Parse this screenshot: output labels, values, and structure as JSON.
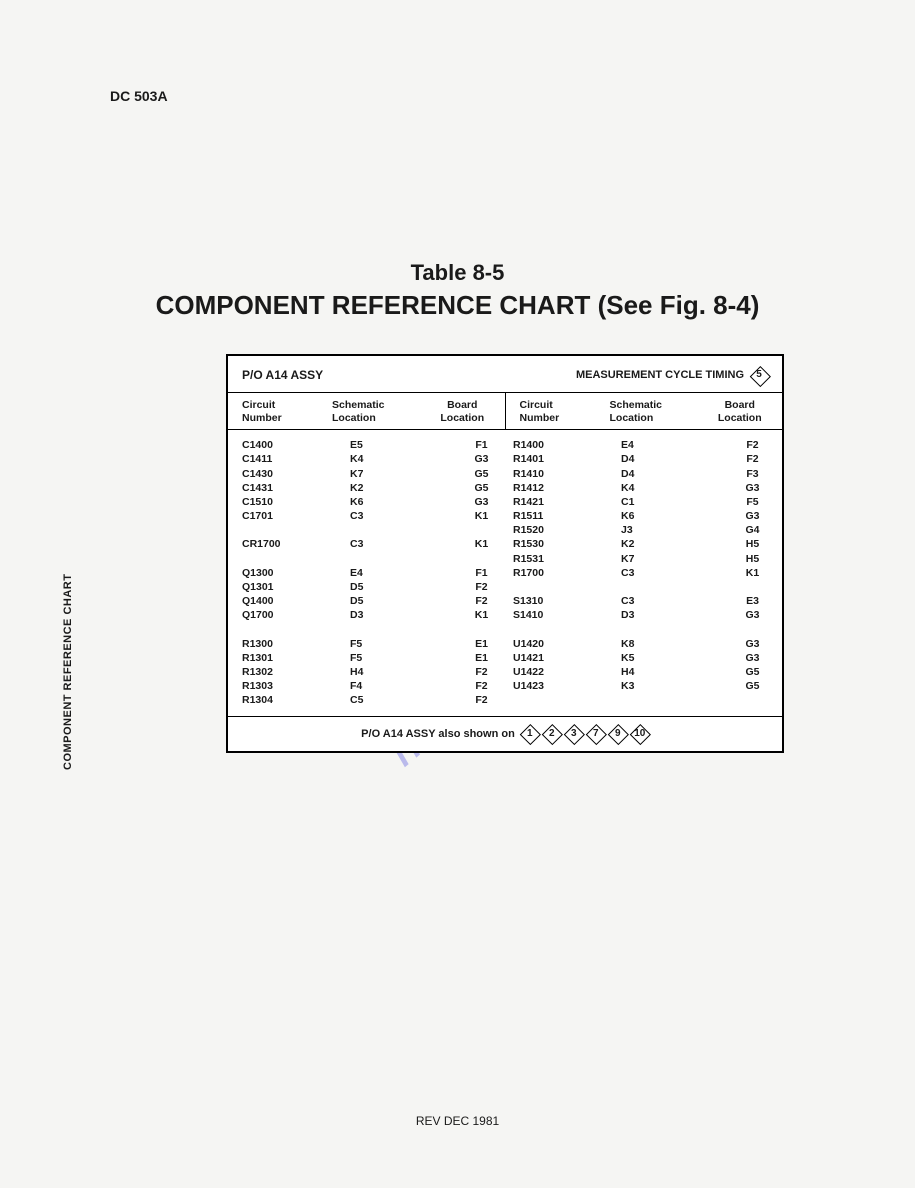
{
  "document_id": "DC 503A",
  "sidebar_label": "COMPONENT REFERENCE CHART",
  "table_label": "Table 8-5",
  "table_title": "COMPONENT REFERENCE CHART (See Fig. 8-4)",
  "box_header_left": "P/O A14 ASSY",
  "box_header_right_text": "MEASUREMENT CYCLE TIMING",
  "box_header_right_diamond": "5",
  "column_headers": {
    "circuit_l1": "Circuit",
    "circuit_l2": "Number",
    "schematic_l1": "Schematic",
    "schematic_l2": "Location",
    "board_l1": "Board",
    "board_l2": "Location"
  },
  "left_rows": [
    {
      "c": "C1400",
      "s": "E5",
      "b": "F1"
    },
    {
      "c": "C1411",
      "s": "K4",
      "b": "G3"
    },
    {
      "c": "C1430",
      "s": "K7",
      "b": "G5"
    },
    {
      "c": "C1431",
      "s": "K2",
      "b": "G5"
    },
    {
      "c": "C1510",
      "s": "K6",
      "b": "G3"
    },
    {
      "c": "C1701",
      "s": "C3",
      "b": "K1"
    },
    {
      "c": "",
      "s": "",
      "b": ""
    },
    {
      "c": "CR1700",
      "s": "C3",
      "b": "K1"
    },
    {
      "c": "",
      "s": "",
      "b": ""
    },
    {
      "c": "Q1300",
      "s": "E4",
      "b": "F1"
    },
    {
      "c": "Q1301",
      "s": "D5",
      "b": "F2"
    },
    {
      "c": "Q1400",
      "s": "D5",
      "b": "F2"
    },
    {
      "c": "Q1700",
      "s": "D3",
      "b": "K1"
    },
    {
      "c": "",
      "s": "",
      "b": ""
    },
    {
      "c": "R1300",
      "s": "F5",
      "b": "E1"
    },
    {
      "c": "R1301",
      "s": "F5",
      "b": "E1"
    },
    {
      "c": "R1302",
      "s": "H4",
      "b": "F2"
    },
    {
      "c": "R1303",
      "s": "F4",
      "b": "F2"
    },
    {
      "c": "R1304",
      "s": "C5",
      "b": "F2"
    }
  ],
  "right_rows": [
    {
      "c": "R1400",
      "s": "E4",
      "b": "F2"
    },
    {
      "c": "R1401",
      "s": "D4",
      "b": "F2"
    },
    {
      "c": "R1410",
      "s": "D4",
      "b": "F3"
    },
    {
      "c": "R1412",
      "s": "K4",
      "b": "G3"
    },
    {
      "c": "R1421",
      "s": "C1",
      "b": "F5"
    },
    {
      "c": "R1511",
      "s": "K6",
      "b": "G3"
    },
    {
      "c": "R1520",
      "s": "J3",
      "b": "G4"
    },
    {
      "c": "R1530",
      "s": "K2",
      "b": "H5"
    },
    {
      "c": "R1531",
      "s": "K7",
      "b": "H5"
    },
    {
      "c": "R1700",
      "s": "C3",
      "b": "K1"
    },
    {
      "c": "",
      "s": "",
      "b": ""
    },
    {
      "c": "S1310",
      "s": "C3",
      "b": "E3"
    },
    {
      "c": "S1410",
      "s": "D3",
      "b": "G3"
    },
    {
      "c": "",
      "s": "",
      "b": ""
    },
    {
      "c": "U1420",
      "s": "K8",
      "b": "G3"
    },
    {
      "c": "U1421",
      "s": "K5",
      "b": "G3"
    },
    {
      "c": "U1422",
      "s": "H4",
      "b": "G5"
    },
    {
      "c": "U1423",
      "s": "K3",
      "b": "G5"
    }
  ],
  "footer_text": "P/O A14 ASSY also shown on",
  "footer_diamonds": [
    "1",
    "2",
    "3",
    "7",
    "9",
    "10"
  ],
  "rev_footer": "REV DEC 1981",
  "watermark_text": "manualshive.com"
}
